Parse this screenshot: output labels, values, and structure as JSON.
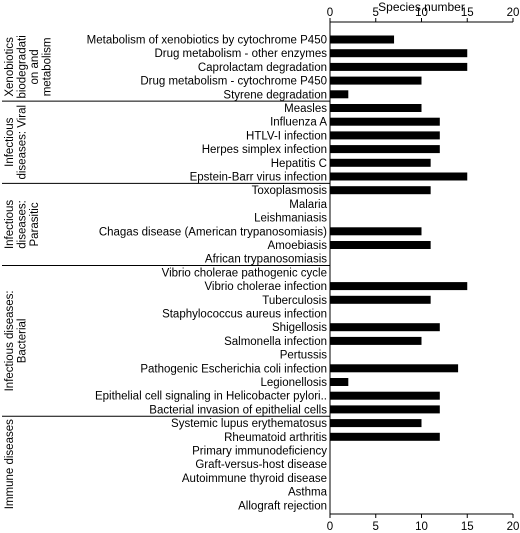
{
  "chart_data": {
    "type": "bar",
    "orientation": "horizontal",
    "xlabel": "Species number",
    "xlim": [
      0,
      20
    ],
    "xticks": [
      0,
      5,
      10,
      15,
      20
    ],
    "grid": false,
    "legend": "none",
    "bar_color": "#000000",
    "groups": [
      {
        "name": "Xenobiotics biodegradation and metabolism",
        "display_lines": [
          "Xenobiotics",
          "biodegradati",
          "on and",
          "metabolism"
        ],
        "categories": [
          "Metabolism of xenobiotics by cytochrome P450",
          "Drug metabolism - other enzymes",
          "Caprolactam degradation",
          "Drug metabolism - cytochrome P450",
          "Styrene degradation"
        ],
        "values": [
          7,
          15,
          15,
          10,
          2
        ]
      },
      {
        "name": "Infectious diseases: Viral",
        "display_lines": [
          "Infectious",
          "diseases: Viral"
        ],
        "categories": [
          "Measles",
          "Influenza A",
          "HTLV-I infection",
          "Herpes simplex infection",
          "Hepatitis C",
          "Epstein-Barr virus infection"
        ],
        "values": [
          10,
          12,
          12,
          12,
          11,
          15
        ]
      },
      {
        "name": "Infectious diseases: Parasitic",
        "display_lines": [
          "Infectious",
          "diseases:",
          "Parasitic"
        ],
        "categories": [
          "Toxoplasmosis",
          "Malaria",
          "Leishmaniasis",
          "Chagas disease (American trypanosomiasis)",
          "Amoebiasis",
          "African trypanosomiasis"
        ],
        "values": [
          11,
          0,
          0,
          10,
          11,
          0
        ]
      },
      {
        "name": "Infectious diseases: Bacterial",
        "display_lines": [
          "Infectious diseases:",
          "Bacterial"
        ],
        "categories": [
          "Vibrio cholerae pathogenic cycle",
          "Vibrio cholerae infection",
          "Tuberculosis",
          "Staphylococcus aureus infection",
          "Shigellosis",
          "Salmonella infection",
          "Pertussis",
          "Pathogenic Escherichia coli infection",
          "Legionellosis",
          "Epithelial cell signaling in Helicobacter pylori..",
          "Bacterial invasion of epithelial cells"
        ],
        "values": [
          0,
          15,
          11,
          0,
          12,
          10,
          0,
          14,
          2,
          12,
          12
        ]
      },
      {
        "name": "Immune diseases",
        "display_lines": [
          "Immune diseases"
        ],
        "categories": [
          "Systemic lupus erythematosus",
          "Rheumatoid arthritis",
          "Primary immunodeficiency",
          "Graft-versus-host disease",
          "Autoimmune thyroid disease",
          "Asthma",
          "Allograft rejection"
        ],
        "values": [
          10,
          12,
          0,
          0,
          0,
          0,
          0
        ]
      }
    ]
  }
}
